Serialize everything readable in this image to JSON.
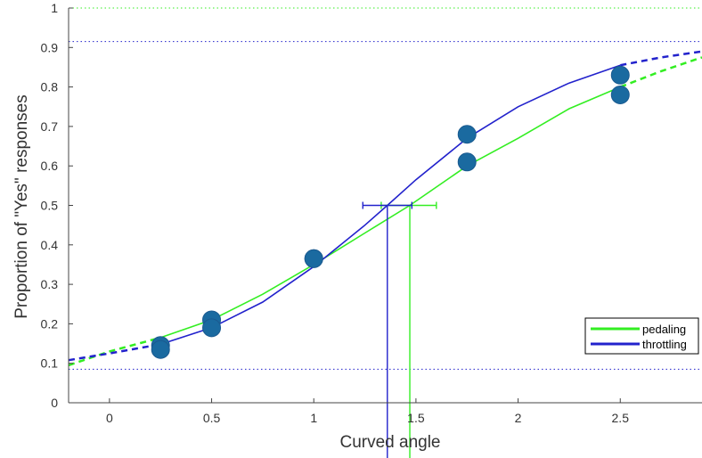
{
  "chart_data": {
    "type": "scatter",
    "xlabel": "Curved angle",
    "ylabel": "Proportion of \"Yes\" responses",
    "xlim": [
      -0.2,
      2.9
    ],
    "ylim": [
      0,
      1
    ],
    "x_ticks": [
      0,
      0.5,
      1,
      1.5,
      2,
      2.5
    ],
    "x_tick_labels": [
      "0",
      "0.5",
      "1",
      "1.5",
      "2",
      "2.5"
    ],
    "y_ticks": [
      0,
      0.1,
      0.2,
      0.3,
      0.4,
      0.5,
      0.6,
      0.7,
      0.8,
      0.9,
      1
    ],
    "y_tick_labels": [
      "0",
      "0.1",
      "0.2",
      "0.3",
      "0.4",
      "0.5",
      "0.6",
      "0.7",
      "0.8",
      "0.9",
      "1"
    ],
    "grid": false,
    "legend_position": "bottom-right",
    "series": [
      {
        "name": "pedaling",
        "color": "#33ee22",
        "guess_rate": 0.085,
        "lapse_level": 1.0,
        "threshold": 1.47,
        "threshold_ci": [
          1.33,
          1.6
        ],
        "curve": {
          "x": [
            -0.2,
            0.0,
            0.25,
            0.5,
            0.75,
            1.0,
            1.25,
            1.47,
            1.75,
            2.0,
            2.25,
            2.5,
            2.7,
            2.9
          ],
          "y": [
            0.095,
            0.13,
            0.165,
            0.21,
            0.275,
            0.35,
            0.43,
            0.5,
            0.6,
            0.67,
            0.745,
            0.8,
            0.84,
            0.875
          ]
        },
        "points": {
          "x": [
            0.25,
            0.5,
            1.0,
            1.75,
            2.5
          ],
          "y": [
            0.145,
            0.21,
            0.365,
            0.61,
            0.78
          ]
        }
      },
      {
        "name": "throttling",
        "color": "#2222cc",
        "guess_rate": 0.085,
        "lapse_level": 0.915,
        "threshold": 1.36,
        "threshold_ci": [
          1.24,
          1.48
        ],
        "curve": {
          "x": [
            -0.2,
            0.0,
            0.25,
            0.5,
            0.75,
            1.0,
            1.25,
            1.36,
            1.5,
            1.75,
            2.0,
            2.25,
            2.5,
            2.7,
            2.9
          ],
          "y": [
            0.108,
            0.125,
            0.148,
            0.19,
            0.255,
            0.345,
            0.45,
            0.5,
            0.565,
            0.67,
            0.75,
            0.81,
            0.855,
            0.875,
            0.89
          ]
        },
        "points": {
          "x": [
            0.25,
            0.5,
            1.0,
            1.75,
            2.5
          ],
          "y": [
            0.135,
            0.19,
            0.365,
            0.68,
            0.83
          ]
        }
      }
    ],
    "marker_color": "#1a6aa0"
  }
}
